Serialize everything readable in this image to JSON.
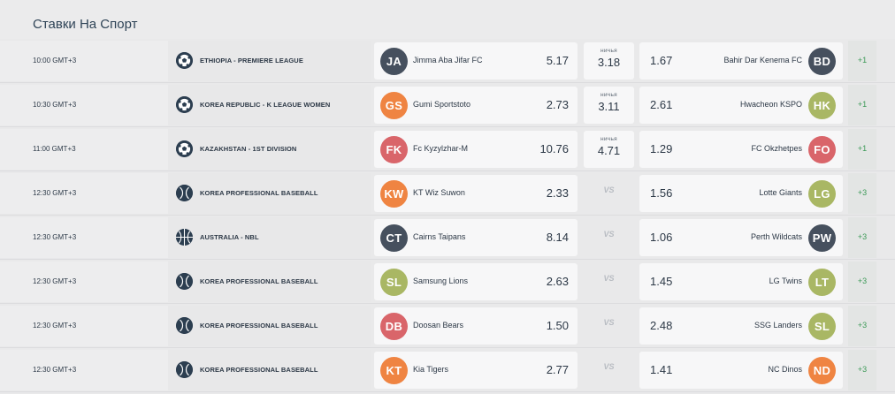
{
  "header": {
    "title": "Ставки На Спорт"
  },
  "matches": [
    {
      "time": "10:00",
      "tz": "GMT+3",
      "sport": "football",
      "league": "ETHIOPIA - PREMIERE LEAGUE",
      "home": {
        "abbr": "JA",
        "name": "Jimma Aba Jifar FC",
        "color": "#46505e",
        "odd": "5.17"
      },
      "draw": {
        "label": "ничья",
        "odd": "3.18"
      },
      "away": {
        "abbr": "BD",
        "name": "Bahir Dar Kenema FC",
        "color": "#46505e",
        "odd": "1.67"
      },
      "more": "+1"
    },
    {
      "time": "10:30",
      "tz": "GMT+3",
      "sport": "football",
      "league": "KOREA REPUBLIC - K LEAGUE WOMEN",
      "home": {
        "abbr": "GS",
        "name": "Gumi Sportstoto",
        "color": "#ef8442",
        "odd": "2.73"
      },
      "draw": {
        "label": "ничья",
        "odd": "3.11"
      },
      "away": {
        "abbr": "HK",
        "name": "Hwacheon KSPO",
        "color": "#a9b764",
        "odd": "2.61"
      },
      "more": "+1"
    },
    {
      "time": "11:00",
      "tz": "GMT+3",
      "sport": "football",
      "league": "KAZAKHSTAN - 1ST DIVISION",
      "home": {
        "abbr": "FK",
        "name": "Fc Kyzylzhar-M",
        "color": "#d9656a",
        "odd": "10.76"
      },
      "draw": {
        "label": "ничья",
        "odd": "4.71"
      },
      "away": {
        "abbr": "FO",
        "name": "FC Okzhetpes",
        "color": "#d9656a",
        "odd": "1.29"
      },
      "more": "+1"
    },
    {
      "time": "12:30",
      "tz": "GMT+3",
      "sport": "baseball",
      "league": "KOREA PROFESSIONAL BASEBALL",
      "home": {
        "abbr": "KW",
        "name": "KT Wiz Suwon",
        "color": "#ef8442",
        "odd": "2.33"
      },
      "vs": "VS",
      "away": {
        "abbr": "LG",
        "name": "Lotte Giants",
        "color": "#a9b764",
        "odd": "1.56"
      },
      "more": "+3"
    },
    {
      "time": "12:30",
      "tz": "GMT+3",
      "sport": "basketball",
      "league": "AUSTRALIA - NBL",
      "home": {
        "abbr": "CT",
        "name": "Cairns Taipans",
        "color": "#46505e",
        "odd": "8.14"
      },
      "vs": "VS",
      "away": {
        "abbr": "PW",
        "name": "Perth Wildcats",
        "color": "#46505e",
        "odd": "1.06"
      },
      "more": "+3"
    },
    {
      "time": "12:30",
      "tz": "GMT+3",
      "sport": "baseball",
      "league": "KOREA PROFESSIONAL BASEBALL",
      "home": {
        "abbr": "SL",
        "name": "Samsung Lions",
        "color": "#a9b764",
        "odd": "2.63"
      },
      "vs": "VS",
      "away": {
        "abbr": "LT",
        "name": "LG Twins",
        "color": "#a9b764",
        "odd": "1.45"
      },
      "more": "+3"
    },
    {
      "time": "12:30",
      "tz": "GMT+3",
      "sport": "baseball",
      "league": "KOREA PROFESSIONAL BASEBALL",
      "home": {
        "abbr": "DB",
        "name": "Doosan Bears",
        "color": "#d9656a",
        "odd": "1.50"
      },
      "vs": "VS",
      "away": {
        "abbr": "SL",
        "name": "SSG Landers",
        "color": "#a9b764",
        "odd": "2.48"
      },
      "more": "+3"
    },
    {
      "time": "12:30",
      "tz": "GMT+3",
      "sport": "baseball",
      "league": "KOREA PROFESSIONAL BASEBALL",
      "home": {
        "abbr": "KT",
        "name": "Kia Tigers",
        "color": "#ef8442",
        "odd": "2.77"
      },
      "vs": "VS",
      "away": {
        "abbr": "ND",
        "name": "NC Dinos",
        "color": "#ef8442",
        "odd": "1.41"
      },
      "more": "+3"
    }
  ]
}
